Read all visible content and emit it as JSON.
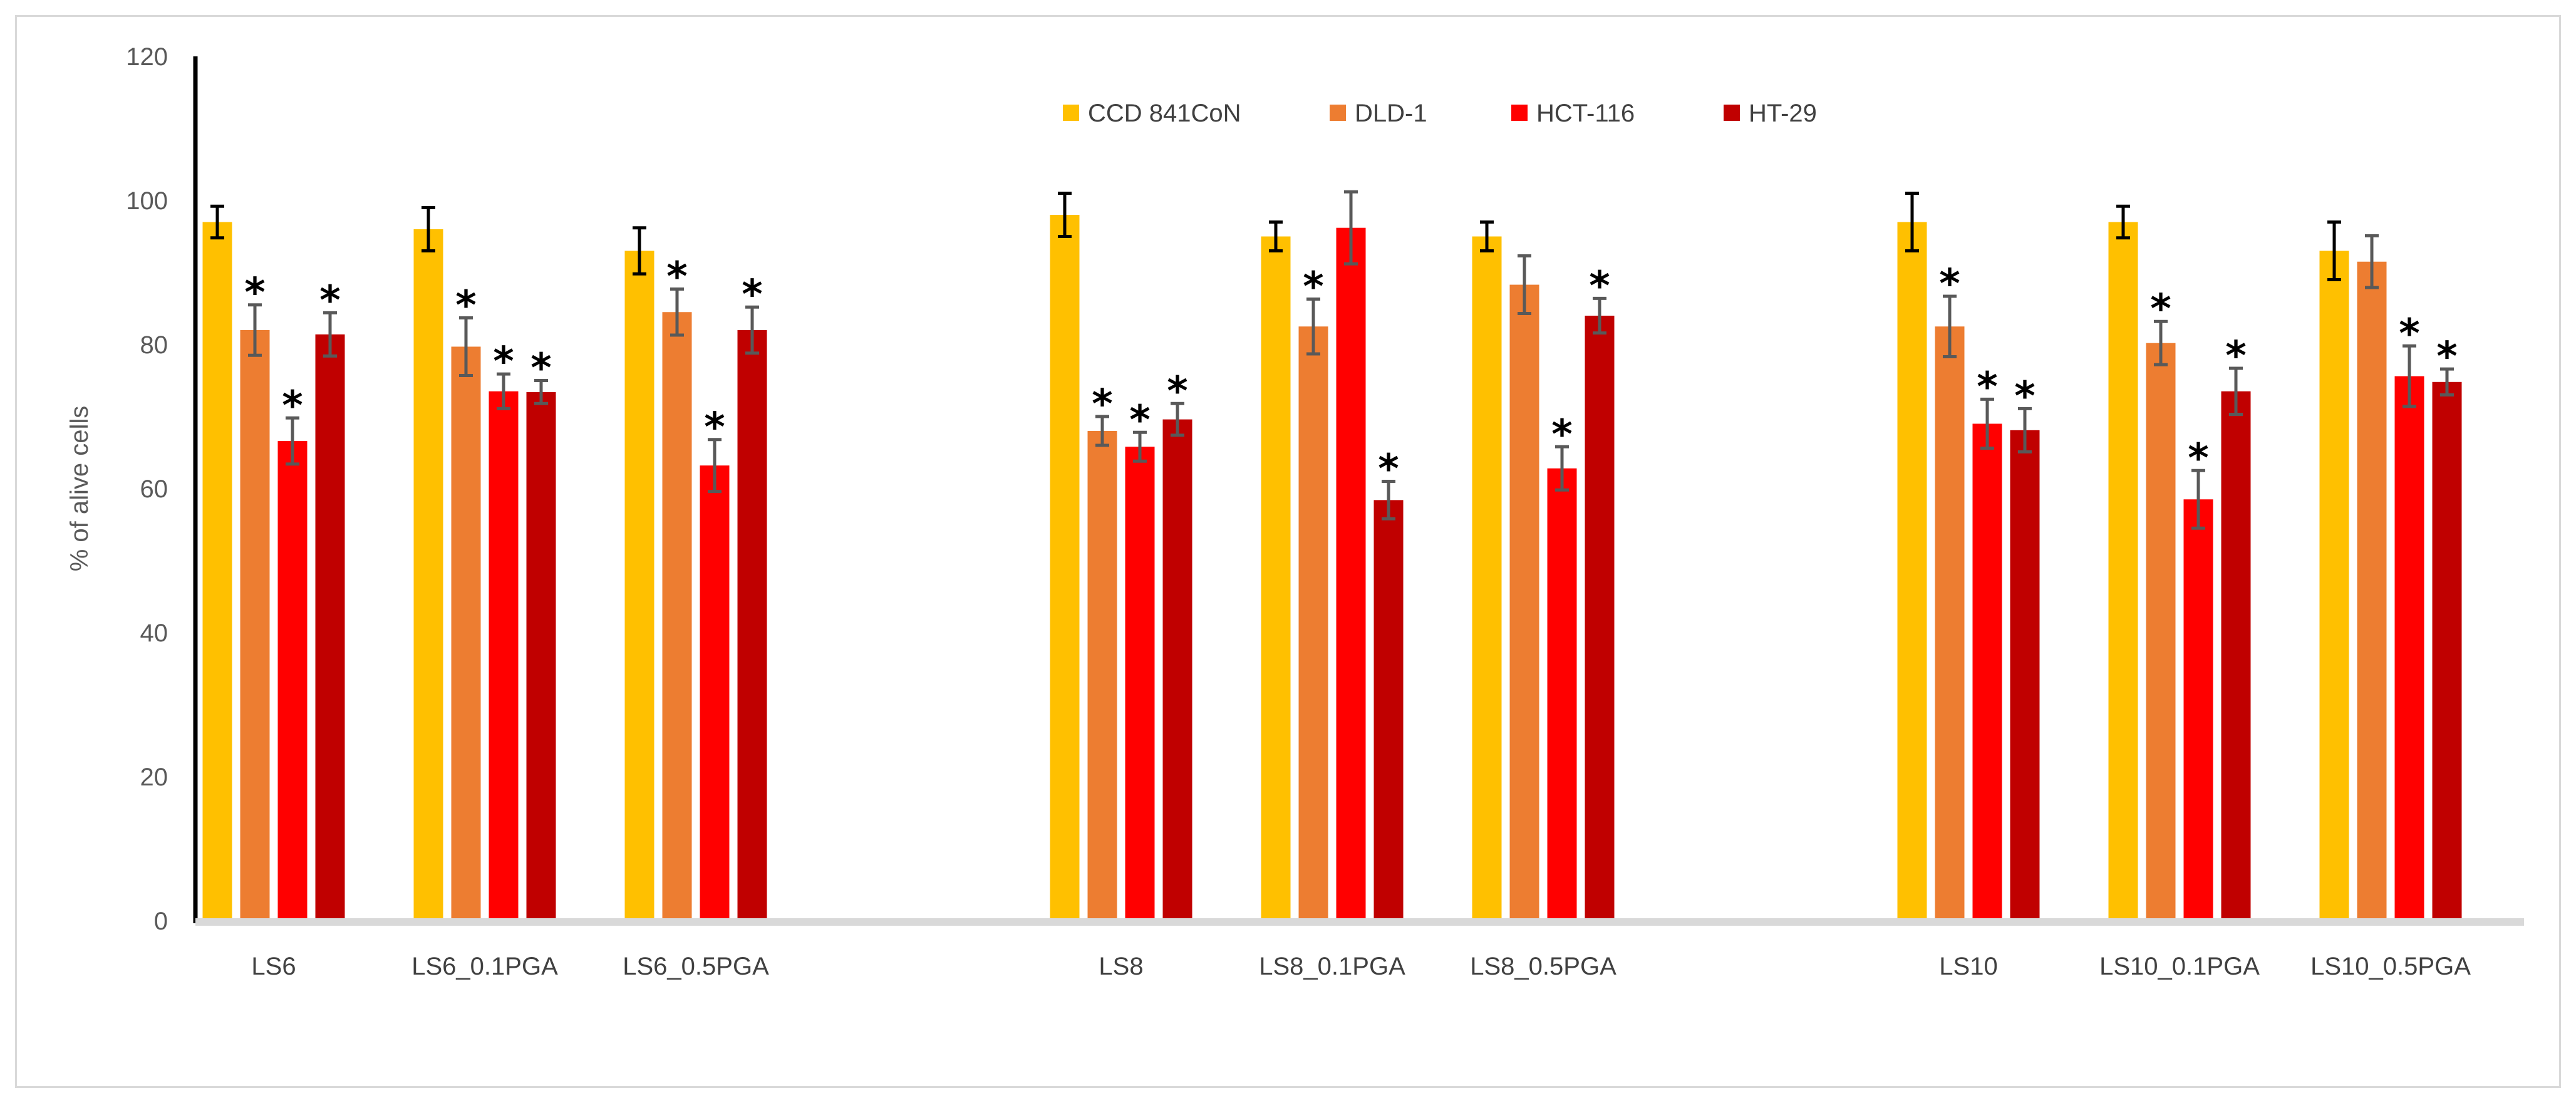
{
  "chart_data": {
    "type": "bar",
    "title": "",
    "xlabel": "",
    "ylabel": "% of alive cells",
    "ylim": [
      0,
      120
    ],
    "yticks": [
      "0",
      "20",
      "40",
      "60",
      "80",
      "100",
      "120"
    ],
    "grid": false,
    "legend_position": "top-center",
    "significance_marker": "*",
    "groups": [
      {
        "categories": [
          "LS6",
          "LS6_0.1PGA",
          "LS6_0.5PGA"
        ]
      },
      {
        "categories": [
          "LS8",
          "LS8_0.1PGA",
          "LS8_0.5PGA"
        ]
      },
      {
        "categories": [
          "LS10",
          "LS10_0.1PGA",
          "LS10_0.5PGA"
        ]
      }
    ],
    "categories": [
      "LS6",
      "LS6_0.1PGA",
      "LS6_0.5PGA",
      "LS8",
      "LS8_0.1PGA",
      "LS8_0.5PGA",
      "LS10",
      "LS10_0.1PGA",
      "LS10_0.5PGA"
    ],
    "series": [
      {
        "name": "CCD 841CoN",
        "color": "#FFC000",
        "values": [
          97,
          96,
          93,
          98,
          95,
          95,
          97,
          97,
          93
        ],
        "errors": [
          2.2,
          3,
          3.2,
          3,
          2,
          2,
          4,
          2.2,
          4
        ],
        "significant": [
          false,
          false,
          false,
          false,
          false,
          false,
          false,
          false,
          false
        ]
      },
      {
        "name": "DLD-1",
        "color": "#ED7D31",
        "values": [
          82,
          79.7,
          84.5,
          68,
          82.5,
          88.3,
          82.5,
          80.2,
          91.5
        ],
        "errors": [
          3.5,
          4,
          3.2,
          2,
          3.8,
          4,
          4.2,
          3,
          3.6
        ],
        "significant": [
          true,
          true,
          true,
          true,
          true,
          false,
          true,
          true,
          false
        ]
      },
      {
        "name": "HCT-116",
        "color": "#FF0000",
        "values": [
          66.6,
          73.5,
          63.2,
          65.8,
          96.2,
          62.8,
          69,
          58.5,
          75.6
        ],
        "errors": [
          3.2,
          2.4,
          3.6,
          2,
          5,
          3,
          3.4,
          4,
          4.2
        ],
        "significant": [
          true,
          true,
          true,
          true,
          false,
          true,
          true,
          true,
          true
        ]
      },
      {
        "name": "HT-29",
        "color": "#C00000",
        "values": [
          81.4,
          73.4,
          82,
          69.6,
          58.4,
          84,
          68.1,
          73.5,
          74.8
        ],
        "errors": [
          3,
          1.6,
          3.2,
          2.2,
          2.6,
          2.4,
          3,
          3.2,
          1.8
        ],
        "significant": [
          true,
          true,
          true,
          true,
          true,
          true,
          true,
          true,
          true
        ]
      }
    ]
  }
}
